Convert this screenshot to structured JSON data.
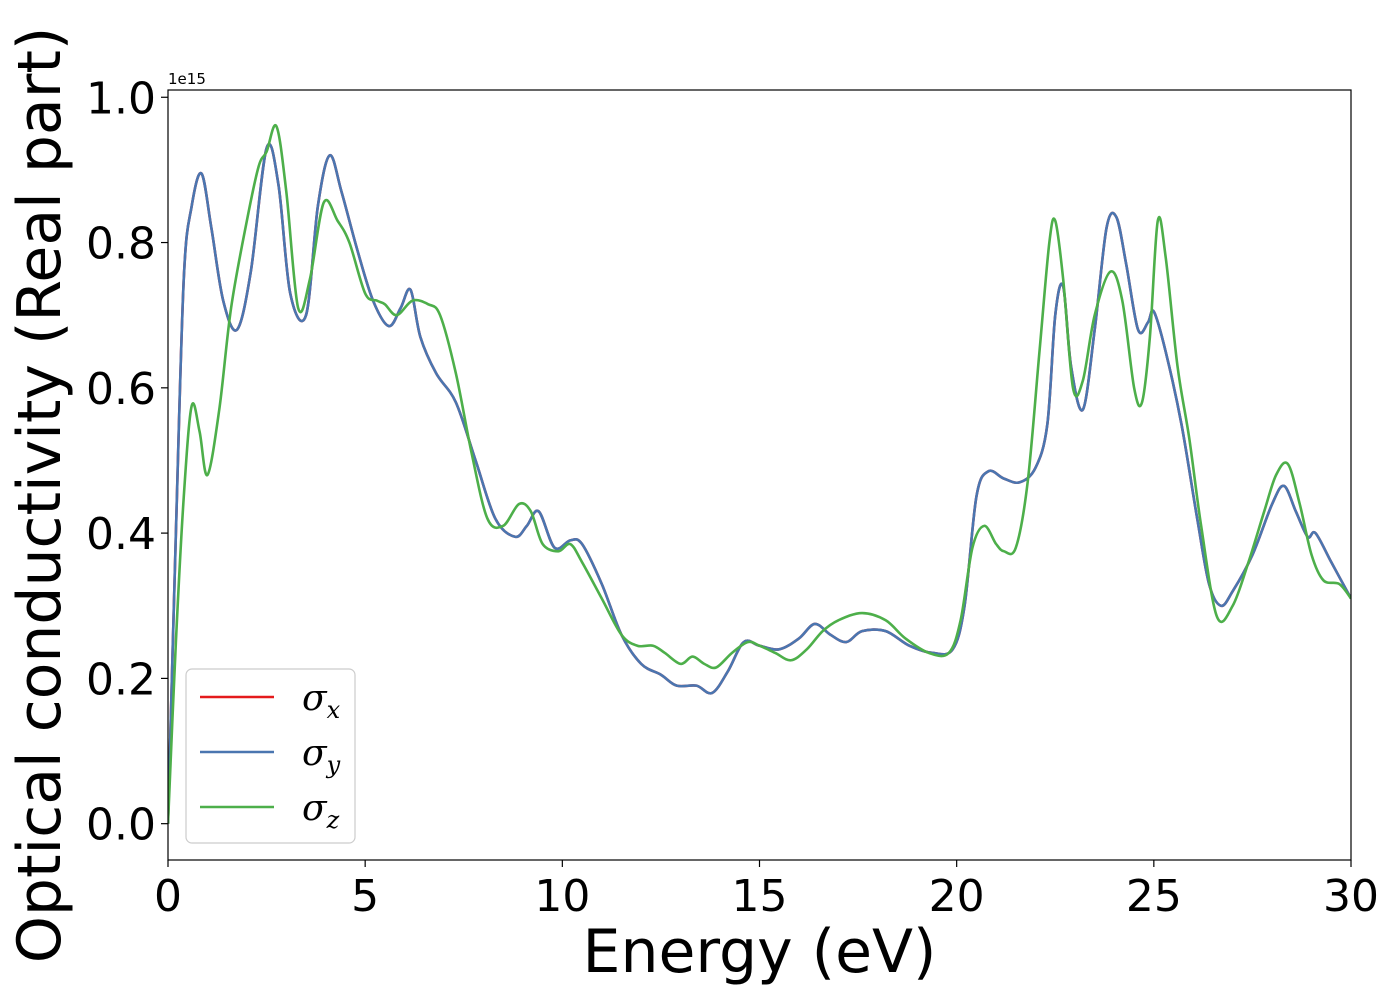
{
  "chart_data": {
    "type": "line",
    "xlabel": "Energy (eV)",
    "ylabel": "Optical conductivity (Real part)",
    "y_offset_label": "1e15",
    "xlim": [
      0,
      30
    ],
    "ylim": [
      -0.05,
      1.01
    ],
    "xticks": [
      0,
      5,
      10,
      15,
      20,
      25,
      30
    ],
    "xtick_labels": [
      "0",
      "5",
      "10",
      "15",
      "20",
      "25",
      "30"
    ],
    "yticks": [
      0.0,
      0.2,
      0.4,
      0.6,
      0.8,
      1.0
    ],
    "ytick_labels": [
      "0.0",
      "0.2",
      "0.4",
      "0.6",
      "0.8",
      "1.0"
    ],
    "grid": false,
    "legend_position": "bottom-left",
    "series": [
      {
        "name": "σx",
        "symbol": "σ",
        "subscript": "x",
        "color": "#e41a1c",
        "x": [
          0,
          0.2,
          0.4,
          0.6,
          0.85,
          1.1,
          1.4,
          1.75,
          2.1,
          2.5,
          2.8,
          3.1,
          3.5,
          3.8,
          4.1,
          4.4,
          4.8,
          5.2,
          5.6,
          5.9,
          6.15,
          6.4,
          6.8,
          7.3,
          7.8,
          8.3,
          8.8,
          9.1,
          9.4,
          9.8,
          10.2,
          10.5,
          11.0,
          11.5,
          12.0,
          12.5,
          12.9,
          13.4,
          13.8,
          14.2,
          14.6,
          15.0,
          15.5,
          16.0,
          16.4,
          16.8,
          17.2,
          17.6,
          18.2,
          18.8,
          19.4,
          19.9,
          20.2,
          20.5,
          20.8,
          21.2,
          21.6,
          22.0,
          22.3,
          22.5,
          22.7,
          22.9,
          23.2,
          23.5,
          23.8,
          24.05,
          24.3,
          24.6,
          24.85,
          25.0,
          25.3,
          25.7,
          26.1,
          26.4,
          26.7,
          27.0,
          27.5,
          28.0,
          28.3,
          28.6,
          28.9,
          29.1,
          29.5,
          30.0
        ],
        "y": [
          0.0,
          0.4,
          0.75,
          0.85,
          0.895,
          0.82,
          0.72,
          0.68,
          0.76,
          0.93,
          0.88,
          0.73,
          0.7,
          0.85,
          0.92,
          0.87,
          0.79,
          0.72,
          0.685,
          0.71,
          0.735,
          0.67,
          0.62,
          0.58,
          0.5,
          0.42,
          0.395,
          0.41,
          0.43,
          0.38,
          0.39,
          0.385,
          0.33,
          0.26,
          0.22,
          0.205,
          0.19,
          0.19,
          0.18,
          0.21,
          0.25,
          0.245,
          0.24,
          0.255,
          0.275,
          0.26,
          0.25,
          0.265,
          0.265,
          0.245,
          0.235,
          0.24,
          0.3,
          0.45,
          0.485,
          0.475,
          0.47,
          0.49,
          0.55,
          0.7,
          0.74,
          0.63,
          0.57,
          0.68,
          0.82,
          0.835,
          0.77,
          0.68,
          0.69,
          0.705,
          0.65,
          0.55,
          0.42,
          0.33,
          0.3,
          0.32,
          0.37,
          0.44,
          0.465,
          0.43,
          0.395,
          0.4,
          0.36,
          0.31
        ]
      },
      {
        "name": "σy",
        "symbol": "σ",
        "subscript": "y",
        "color": "#4a76b0",
        "x": [
          0,
          0.2,
          0.4,
          0.6,
          0.85,
          1.1,
          1.4,
          1.75,
          2.1,
          2.5,
          2.8,
          3.1,
          3.5,
          3.8,
          4.1,
          4.4,
          4.8,
          5.2,
          5.6,
          5.9,
          6.15,
          6.4,
          6.8,
          7.3,
          7.8,
          8.3,
          8.8,
          9.1,
          9.4,
          9.8,
          10.2,
          10.5,
          11.0,
          11.5,
          12.0,
          12.5,
          12.9,
          13.4,
          13.8,
          14.2,
          14.6,
          15.0,
          15.5,
          16.0,
          16.4,
          16.8,
          17.2,
          17.6,
          18.2,
          18.8,
          19.4,
          19.9,
          20.2,
          20.5,
          20.8,
          21.2,
          21.6,
          22.0,
          22.3,
          22.5,
          22.7,
          22.9,
          23.2,
          23.5,
          23.8,
          24.05,
          24.3,
          24.6,
          24.85,
          25.0,
          25.3,
          25.7,
          26.1,
          26.4,
          26.7,
          27.0,
          27.5,
          28.0,
          28.3,
          28.6,
          28.9,
          29.1,
          29.5,
          30.0
        ],
        "y": [
          0.0,
          0.4,
          0.75,
          0.85,
          0.895,
          0.82,
          0.72,
          0.68,
          0.76,
          0.93,
          0.88,
          0.73,
          0.7,
          0.85,
          0.92,
          0.87,
          0.79,
          0.72,
          0.685,
          0.71,
          0.735,
          0.67,
          0.62,
          0.58,
          0.5,
          0.42,
          0.395,
          0.41,
          0.43,
          0.38,
          0.39,
          0.385,
          0.33,
          0.26,
          0.22,
          0.205,
          0.19,
          0.19,
          0.18,
          0.21,
          0.25,
          0.245,
          0.24,
          0.255,
          0.275,
          0.26,
          0.25,
          0.265,
          0.265,
          0.245,
          0.235,
          0.24,
          0.3,
          0.45,
          0.485,
          0.475,
          0.47,
          0.49,
          0.55,
          0.7,
          0.74,
          0.63,
          0.57,
          0.68,
          0.82,
          0.835,
          0.77,
          0.68,
          0.69,
          0.705,
          0.65,
          0.55,
          0.42,
          0.33,
          0.3,
          0.32,
          0.37,
          0.44,
          0.465,
          0.43,
          0.395,
          0.4,
          0.36,
          0.31
        ]
      },
      {
        "name": "σz",
        "symbol": "σ",
        "subscript": "z",
        "color": "#4daf4a",
        "x": [
          0,
          0.2,
          0.4,
          0.6,
          0.8,
          1.0,
          1.3,
          1.6,
          2.0,
          2.3,
          2.5,
          2.75,
          3.0,
          3.3,
          3.6,
          3.95,
          4.3,
          4.6,
          5.0,
          5.3,
          5.5,
          5.8,
          6.2,
          6.6,
          6.9,
          7.3,
          7.7,
          8.1,
          8.5,
          8.9,
          9.2,
          9.5,
          9.9,
          10.2,
          10.5,
          11.0,
          11.5,
          11.9,
          12.3,
          12.6,
          13.0,
          13.3,
          13.6,
          13.9,
          14.3,
          14.7,
          15.0,
          15.4,
          15.8,
          16.2,
          16.6,
          17.0,
          17.6,
          18.2,
          18.7,
          19.3,
          19.8,
          20.1,
          20.4,
          20.7,
          21.0,
          21.2,
          21.5,
          21.8,
          22.1,
          22.35,
          22.5,
          22.7,
          22.95,
          23.2,
          23.5,
          23.9,
          24.2,
          24.5,
          24.7,
          24.9,
          25.1,
          25.3,
          25.6,
          25.9,
          26.2,
          26.6,
          27.0,
          27.4,
          27.8,
          28.1,
          28.4,
          28.7,
          29.0,
          29.3,
          29.7,
          30.0
        ],
        "y": [
          0.0,
          0.25,
          0.45,
          0.575,
          0.54,
          0.48,
          0.57,
          0.71,
          0.83,
          0.905,
          0.925,
          0.96,
          0.87,
          0.71,
          0.75,
          0.855,
          0.83,
          0.8,
          0.73,
          0.72,
          0.715,
          0.7,
          0.72,
          0.715,
          0.7,
          0.62,
          0.51,
          0.42,
          0.41,
          0.44,
          0.43,
          0.385,
          0.375,
          0.385,
          0.36,
          0.31,
          0.26,
          0.245,
          0.245,
          0.235,
          0.22,
          0.23,
          0.22,
          0.215,
          0.235,
          0.25,
          0.245,
          0.235,
          0.225,
          0.24,
          0.265,
          0.28,
          0.29,
          0.28,
          0.255,
          0.235,
          0.235,
          0.28,
          0.38,
          0.41,
          0.385,
          0.375,
          0.38,
          0.47,
          0.65,
          0.8,
          0.83,
          0.75,
          0.6,
          0.61,
          0.7,
          0.76,
          0.72,
          0.6,
          0.58,
          0.67,
          0.83,
          0.78,
          0.63,
          0.53,
          0.41,
          0.285,
          0.3,
          0.36,
          0.43,
          0.48,
          0.495,
          0.44,
          0.37,
          0.335,
          0.33,
          0.31
        ]
      }
    ]
  }
}
